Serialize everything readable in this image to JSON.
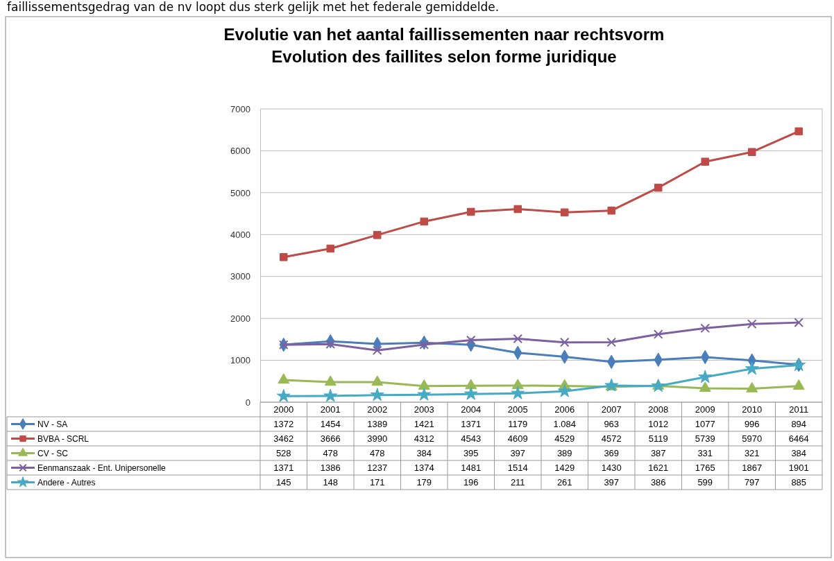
{
  "chart_data": {
    "type": "line",
    "title": "Evolutie van het aantal faillissementen naar rechtsvorm",
    "subtitle": "Evolution des faillites selon forme juridique",
    "annotations": [
      "faillissementsgedrag van de nv loopt dus sterk gelijk met het federale gemiddelde."
    ],
    "categories": [
      "2000",
      "2001",
      "2002",
      "2003",
      "2004",
      "2005",
      "2006",
      "2007",
      "2008",
      "2009",
      "2010",
      "2011"
    ],
    "ylim": [
      0,
      7000
    ],
    "yticks": [
      0,
      1000,
      2000,
      3000,
      4000,
      5000,
      6000,
      7000
    ],
    "grid": "y",
    "legend": "bottom",
    "data_labels": true,
    "series": [
      {
        "name": "NV  - SA",
        "color": "#4a7ebb",
        "marker": "diamond",
        "values": [
          1372,
          1454,
          1389,
          1421,
          1371,
          1179,
          1084,
          963,
          1012,
          1077,
          996,
          894
        ],
        "value_labels": [
          "1372",
          "1454",
          "1389",
          "1421",
          "1371",
          "1179",
          "1.084",
          "963",
          "1012",
          "1077",
          "996",
          "894"
        ]
      },
      {
        "name": "BVBA  - SCRL",
        "color": "#be4b48",
        "marker": "square",
        "values": [
          3462,
          3666,
          3990,
          4312,
          4543,
          4609,
          4529,
          4572,
          5119,
          5739,
          5970,
          6464
        ]
      },
      {
        "name": "CV  - SC",
        "color": "#98b954",
        "marker": "triangle",
        "values": [
          528,
          478,
          478,
          384,
          395,
          397,
          389,
          369,
          387,
          331,
          321,
          384
        ]
      },
      {
        "name": "Eenmanszaak - Ent. Unipersonelle",
        "color": "#7d60a0",
        "marker": "cross",
        "values": [
          1371,
          1386,
          1237,
          1374,
          1481,
          1514,
          1429,
          1430,
          1621,
          1765,
          1867,
          1901
        ]
      },
      {
        "name": "Andere  - Autres",
        "color": "#46aac5",
        "marker": "star",
        "values": [
          145,
          148,
          171,
          179,
          196,
          211,
          261,
          397,
          386,
          599,
          797,
          885
        ]
      }
    ]
  }
}
